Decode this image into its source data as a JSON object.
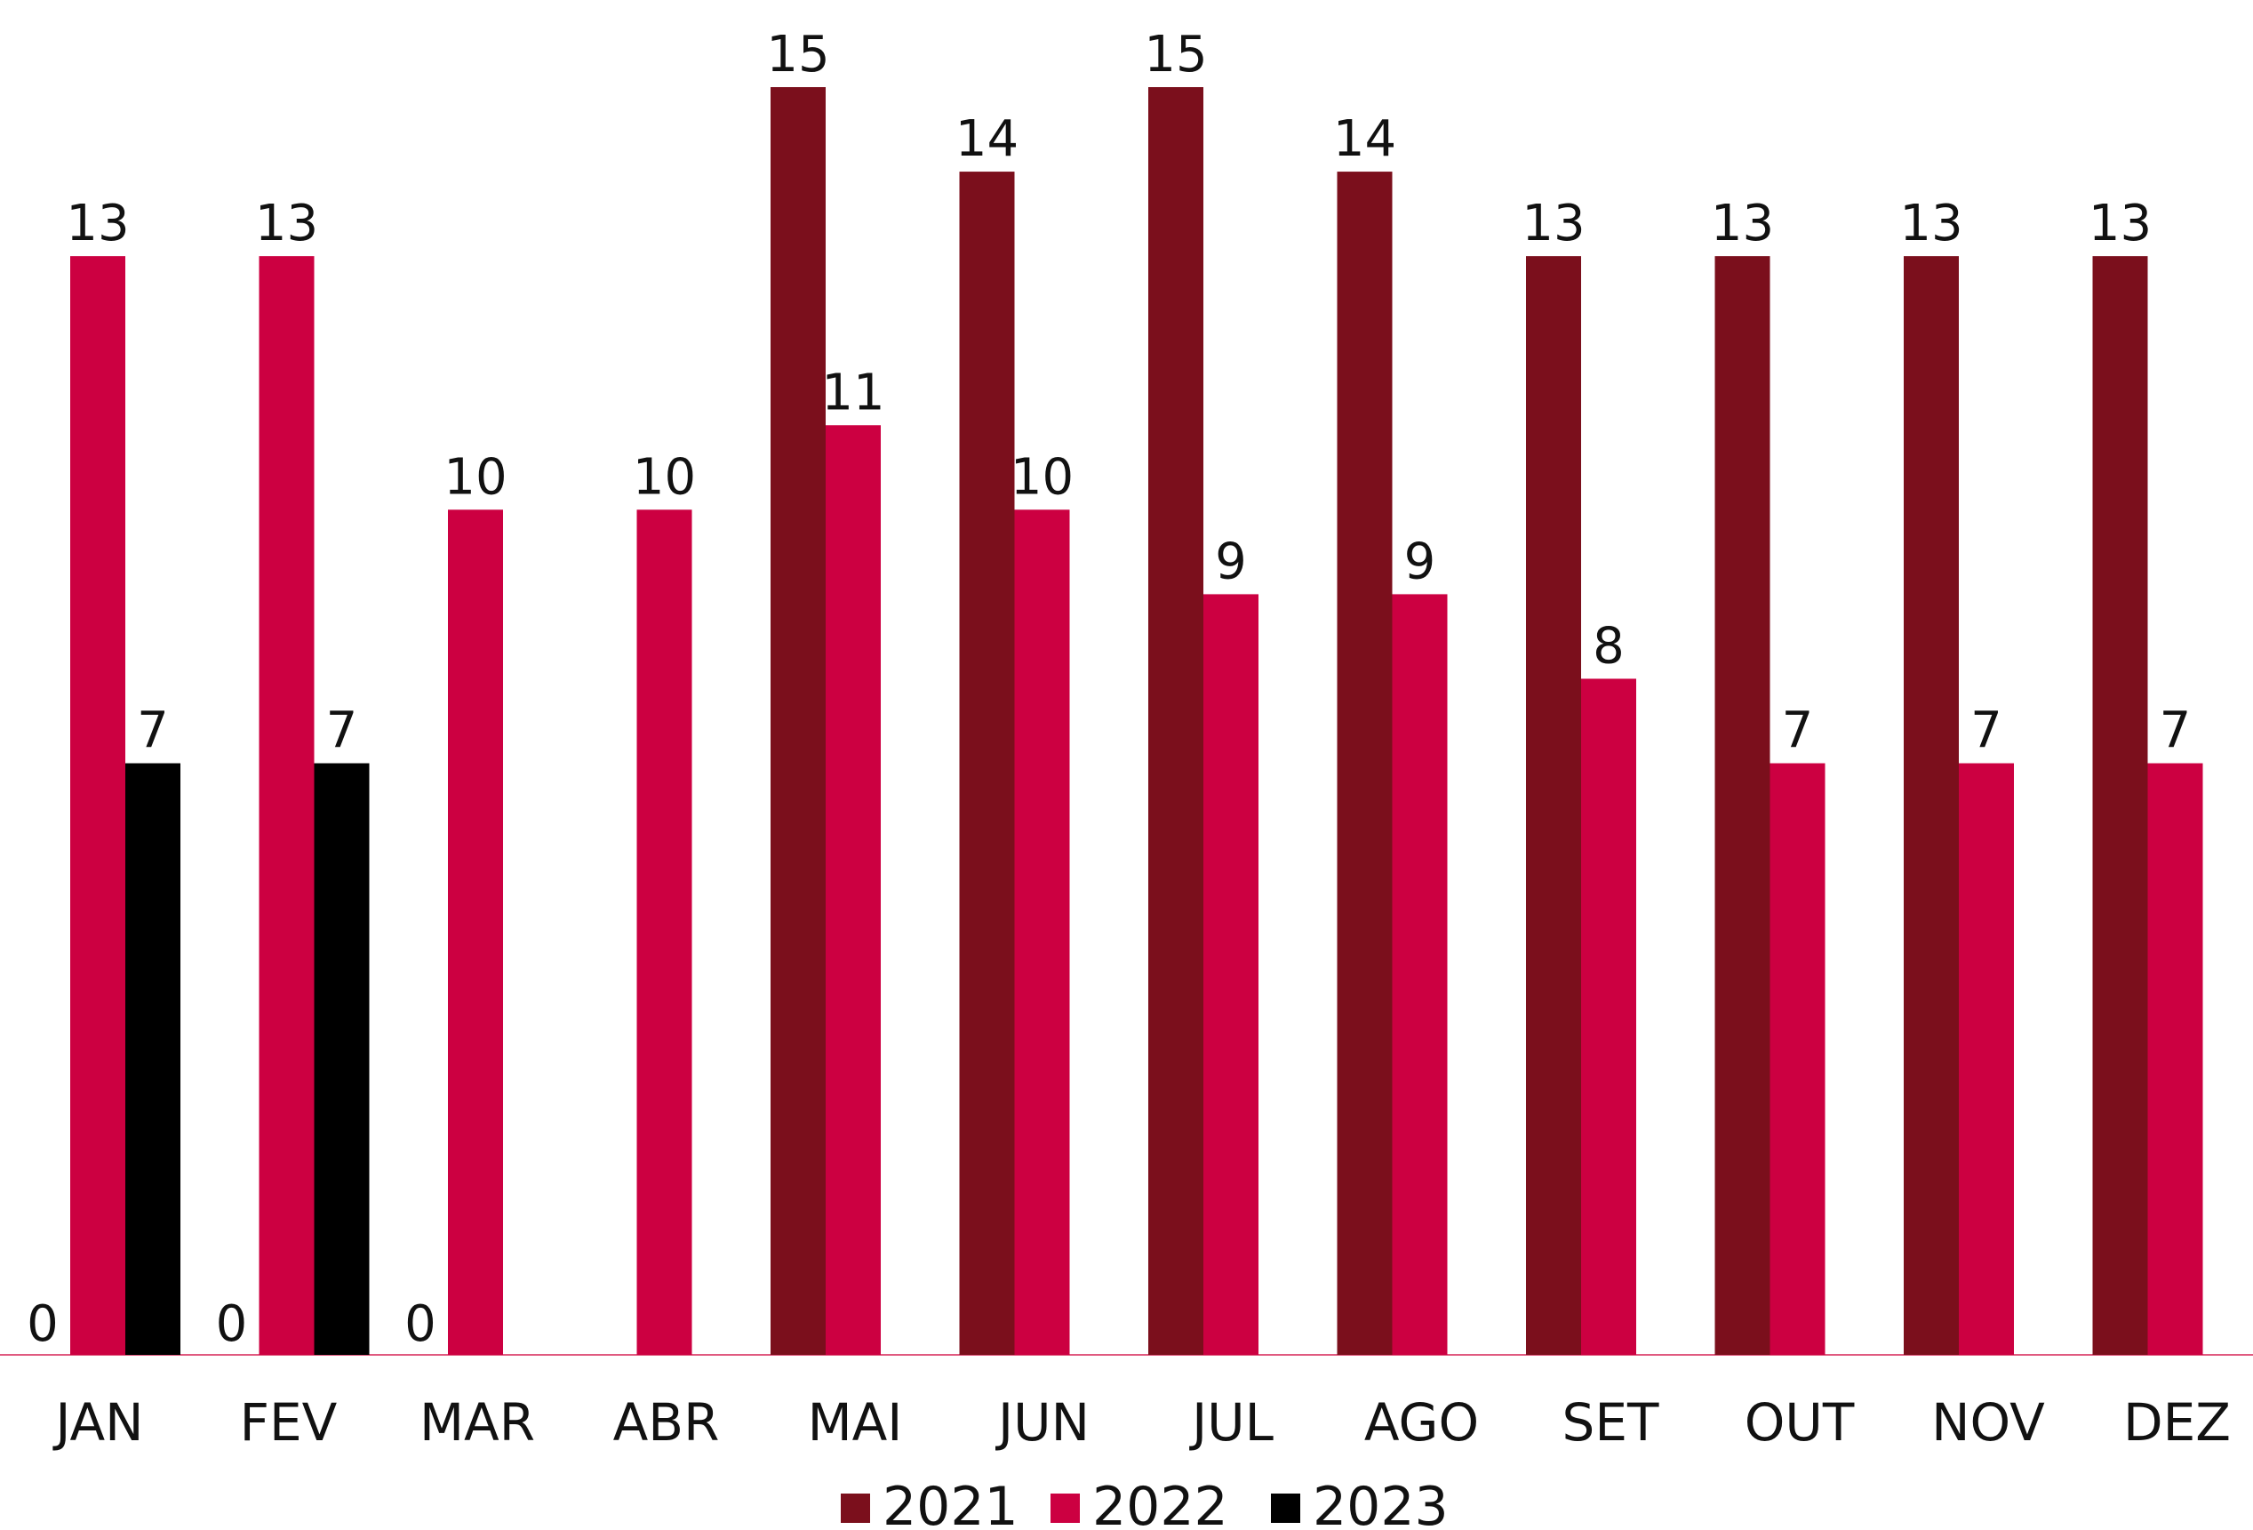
{
  "chart_data": {
    "type": "bar",
    "categories": [
      "JAN",
      "FEV",
      "MAR",
      "ABR",
      "MAI",
      "JUN",
      "JUL",
      "AGO",
      "SET",
      "OUT",
      "NOV",
      "DEZ"
    ],
    "series": [
      {
        "name": "2021",
        "color": "#7B0F1C",
        "values": [
          0,
          0,
          0,
          null,
          15,
          14,
          15,
          14,
          13,
          13,
          13,
          13
        ]
      },
      {
        "name": "2022",
        "color": "#CC0041",
        "values": [
          13,
          13,
          10,
          10,
          11,
          10,
          9,
          9,
          8,
          7,
          7,
          7
        ]
      },
      {
        "name": "2023",
        "color": "#000000",
        "values": [
          7,
          7,
          null,
          null,
          null,
          null,
          null,
          null,
          null,
          null,
          null,
          null
        ]
      }
    ],
    "ylim": [
      0,
      15
    ],
    "grid": false,
    "data_labels": true,
    "legend_position": "bottom-center",
    "baseline_color": "#E05A80"
  }
}
